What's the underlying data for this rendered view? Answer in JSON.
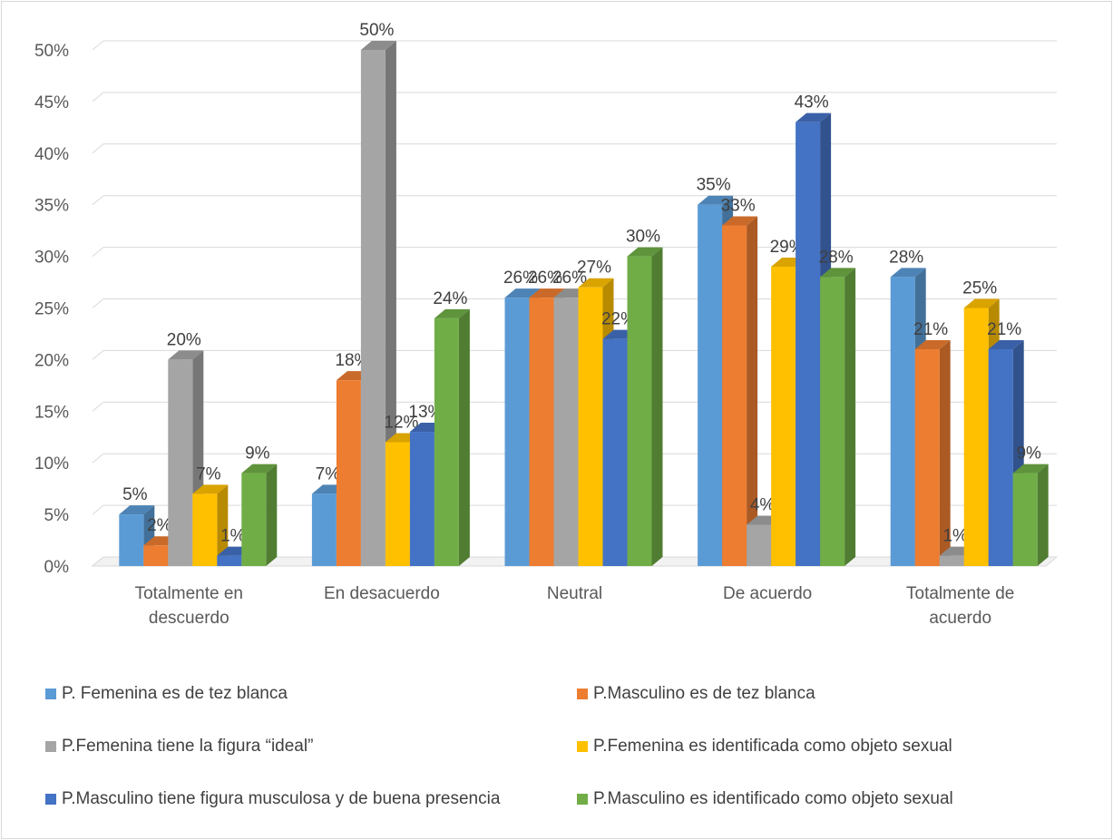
{
  "chart_data": {
    "type": "bar",
    "title": "",
    "xlabel": "",
    "ylabel": "",
    "ylim": [
      0,
      50
    ],
    "y_ticks": [
      "0%",
      "5%",
      "10%",
      "15%",
      "20%",
      "25%",
      "30%",
      "35%",
      "40%",
      "45%",
      "50%"
    ],
    "grid": true,
    "legend_position": "bottom",
    "style": "3d-clustered-column",
    "categories": [
      [
        "Totalmente en",
        "descuerdo"
      ],
      [
        "En desacuerdo"
      ],
      [
        "Neutral"
      ],
      [
        "De acuerdo"
      ],
      [
        "Totalmente de",
        "acuerdo"
      ]
    ],
    "series": [
      {
        "name": "P. Femenina es de tez blanca",
        "color": "#5b9bd5",
        "values": [
          5,
          7,
          26,
          35,
          28
        ],
        "labels": [
          "5%",
          "7%",
          "26%",
          "35%",
          "28%"
        ]
      },
      {
        "name": "P.Masculino es de tez blanca",
        "color": "#ed7d31",
        "values": [
          2,
          18,
          26,
          33,
          21
        ],
        "labels": [
          "2%",
          "18%",
          "26%",
          "33%",
          "21%"
        ]
      },
      {
        "name": "P.Femenina tiene la figura “ideal”",
        "color": "#a5a5a5",
        "values": [
          20,
          50,
          26,
          4,
          1
        ],
        "labels": [
          "20%",
          "50%",
          "26%",
          "4%",
          "1%"
        ]
      },
      {
        "name": "P.Femenina es identificada como objeto sexual",
        "color": "#ffc000",
        "values": [
          7,
          12,
          27,
          29,
          25
        ],
        "labels": [
          "7%",
          "12%",
          "27%",
          "29%",
          "25%"
        ]
      },
      {
        "name": "P.Masculino tiene figura musculosa y de buena presencia",
        "color": "#4472c4",
        "values": [
          1,
          13,
          22,
          43,
          21
        ],
        "labels": [
          "1%",
          "13%",
          "22%",
          "43%",
          "21%"
        ]
      },
      {
        "name": "P.Masculino es identificado como objeto sexual",
        "color": "#70ad47",
        "values": [
          9,
          24,
          30,
          28,
          9
        ],
        "labels": [
          "9%",
          "24%",
          "30%",
          "28%",
          "9%"
        ]
      }
    ]
  }
}
